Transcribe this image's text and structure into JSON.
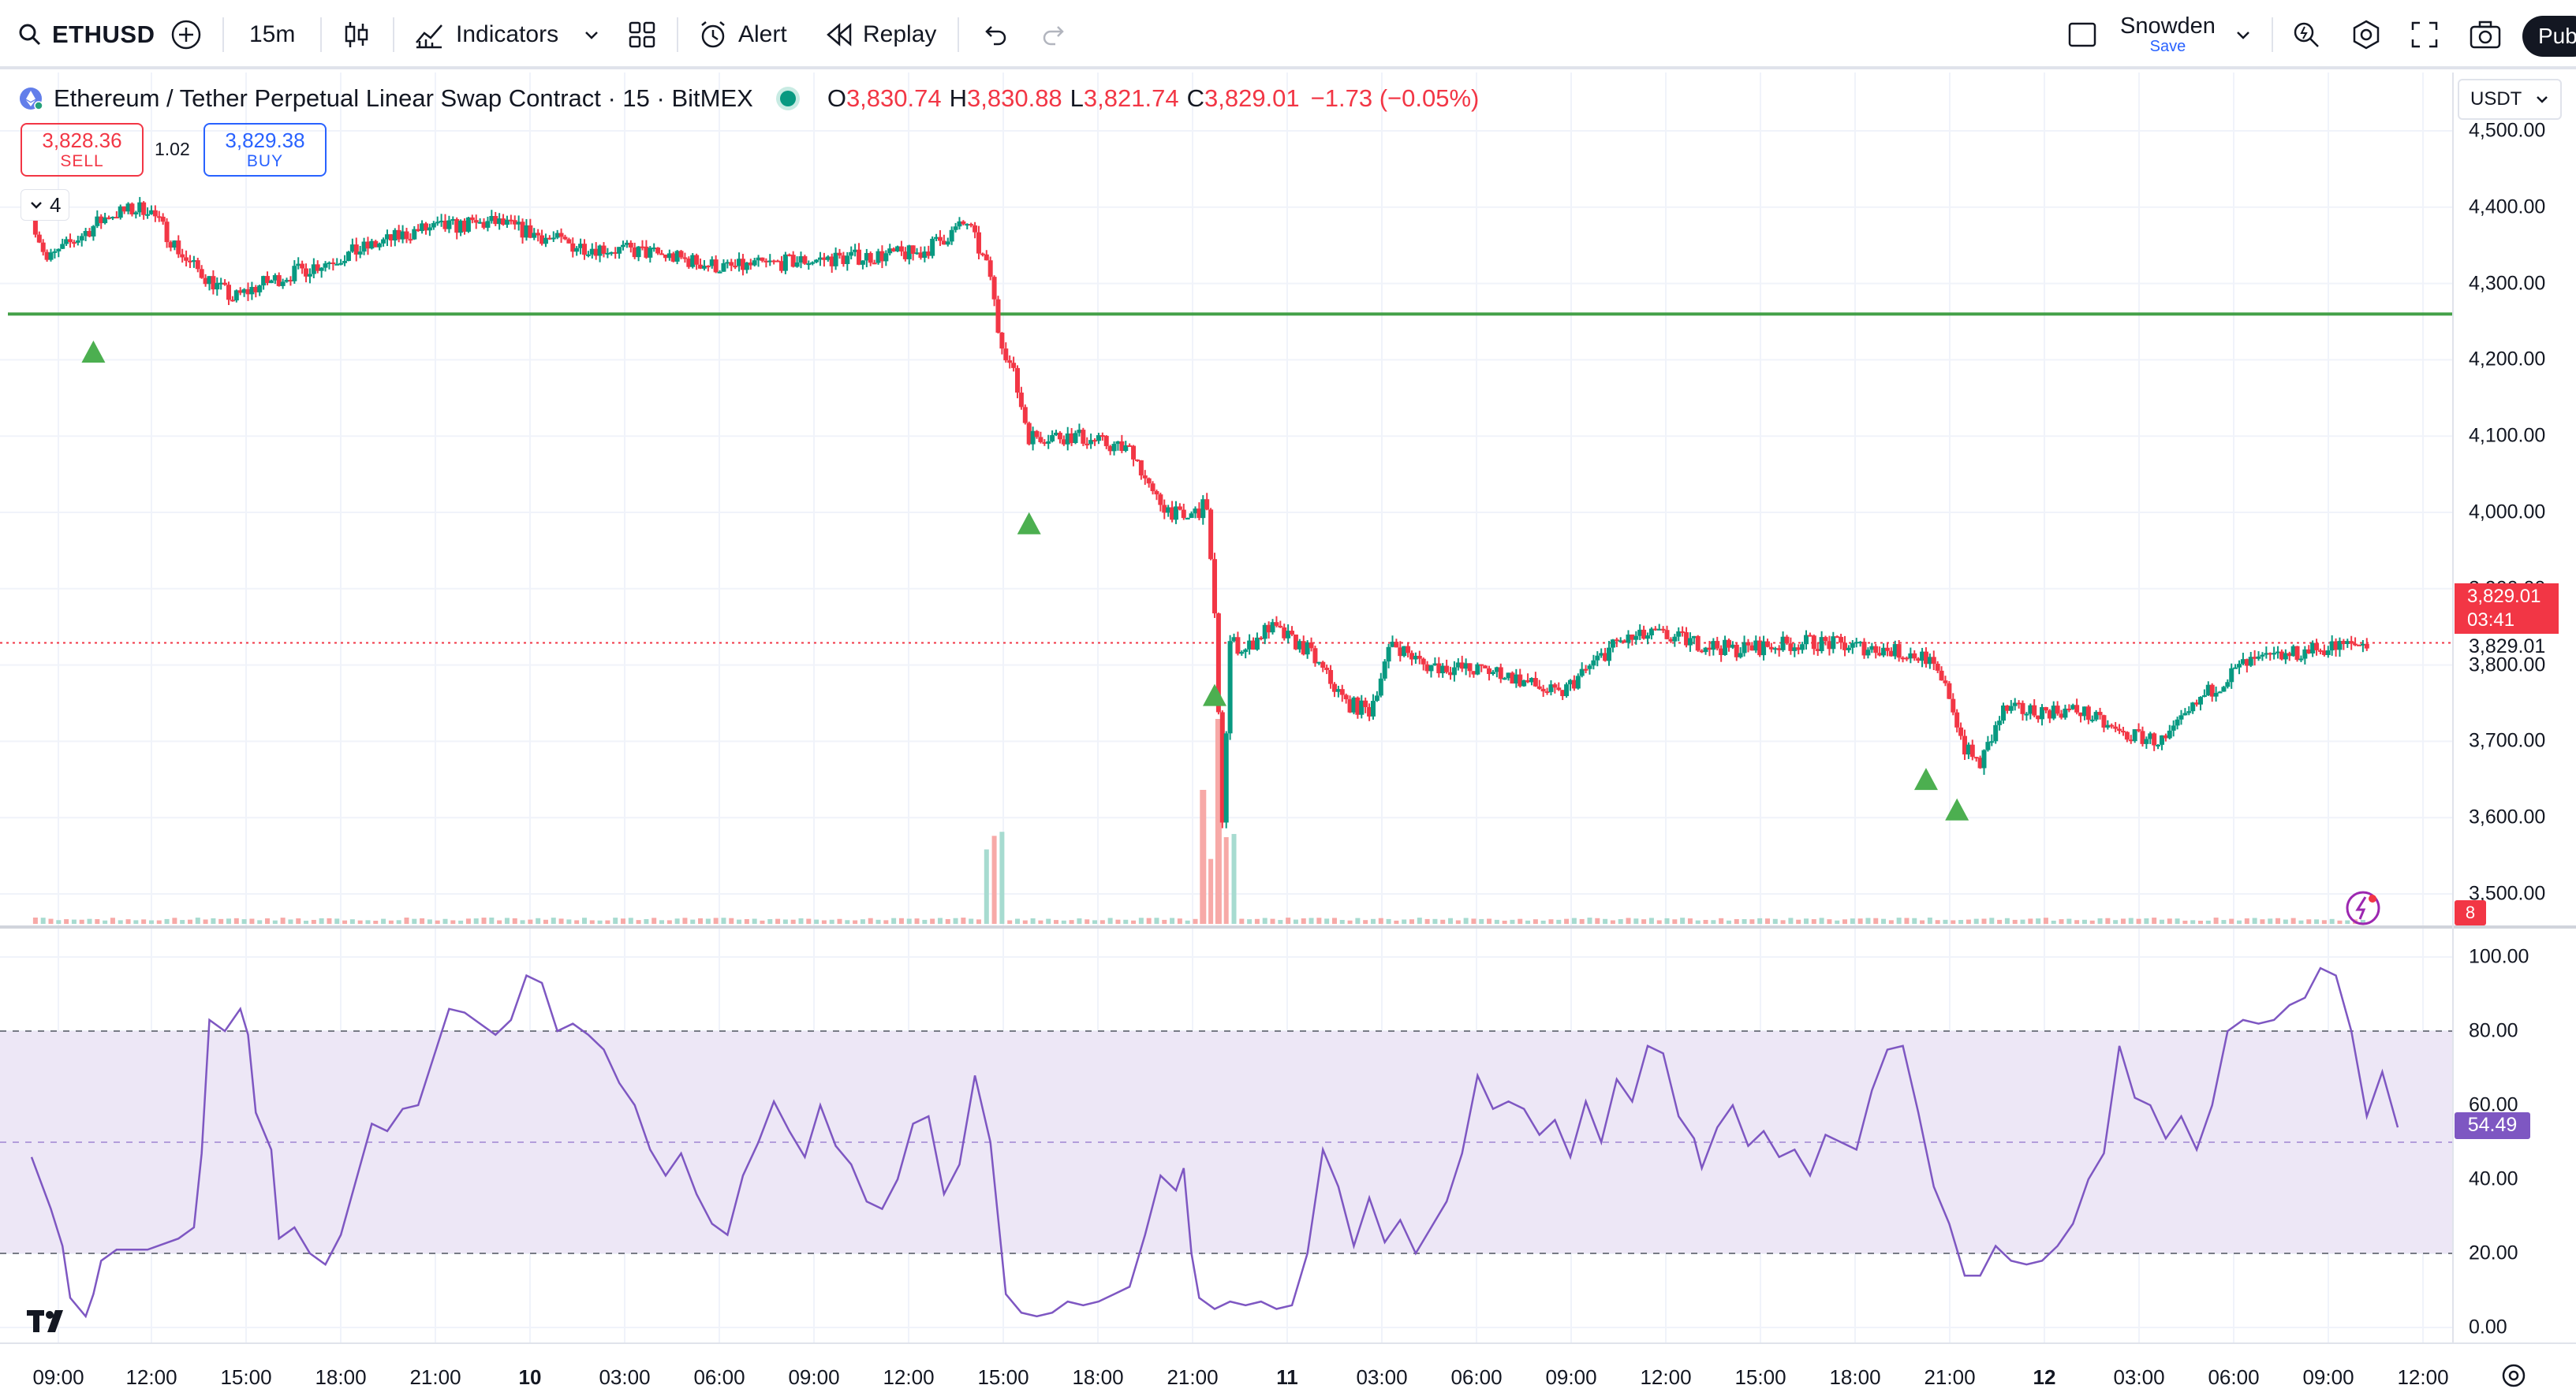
{
  "toolbar": {
    "symbol": "ETHUSD",
    "interval": "15m",
    "indicators_label": "Indicators",
    "alert_label": "Alert",
    "replay_label": "Replay",
    "user_name": "Snowden",
    "save_label": "Save",
    "publish_label": "Pub"
  },
  "legend": {
    "title": "Ethereum / Tether Perpetual Linear Swap Contract · 15 · BitMEX",
    "o_key": "O",
    "o": "3,830.74",
    "h_key": "H",
    "h": "3,830.88",
    "l_key": "L",
    "l": "3,821.74",
    "c_key": "C",
    "c": "3,829.01",
    "change": "−1.73 (−0.05%)"
  },
  "trade": {
    "sell_price": "3,828.36",
    "sell_label": "SELL",
    "spread": "1.02",
    "buy_price": "3,829.38",
    "buy_label": "BUY"
  },
  "collapse_count": "4",
  "currency": "USDT",
  "price_axis": [
    "4,500.00",
    "4,400.00",
    "4,300.00",
    "4,200.00",
    "4,100.00",
    "4,000.00",
    "3,900.00",
    "3,800.00",
    "3,700.00",
    "3,600.00",
    "3,500.00"
  ],
  "last_price": {
    "price": "3,829.01",
    "countdown": "03:41",
    "line_label": "3,829.01"
  },
  "events_count": "8",
  "rsi": {
    "value_label": "54.49",
    "value": 54.49,
    "axis": [
      "100.00",
      "80.00",
      "60.00",
      "40.00",
      "20.00",
      "0.00"
    ],
    "upper_band": 80,
    "middle": 50,
    "lower_band": 20
  },
  "time_axis": [
    "09:00",
    "12:00",
    "15:00",
    "18:00",
    "21:00",
    "10",
    "03:00",
    "06:00",
    "09:00",
    "12:00",
    "15:00",
    "18:00",
    "21:00",
    "11",
    "03:00",
    "06:00",
    "09:00",
    "12:00",
    "15:00",
    "18:00",
    "21:00",
    "12",
    "03:00",
    "06:00",
    "09:00",
    "12:00"
  ],
  "time_axis_bold": [
    5,
    13,
    21
  ],
  "colors": {
    "up": "#089981",
    "down": "#f23645",
    "hline": "#43a047",
    "rsi_line": "#7e57c2",
    "rsi_band": "#ede7f6",
    "marker": "#4caf50"
  },
  "chart_data": {
    "type": "candlestick",
    "interval": "15m",
    "y_unit": "USDT",
    "ylim": [
      3480,
      4520
    ],
    "horizontal_line": 4260,
    "close_path": [
      {
        "t": 0,
        "p": 4390
      },
      {
        "t": 4,
        "p": 4330
      },
      {
        "t": 20,
        "p": 4390
      },
      {
        "t": 30,
        "p": 4400
      },
      {
        "t": 40,
        "p": 4330
      },
      {
        "t": 52,
        "p": 4280
      },
      {
        "t": 60,
        "p": 4300
      },
      {
        "t": 80,
        "p": 4335
      },
      {
        "t": 100,
        "p": 4370
      },
      {
        "t": 120,
        "p": 4380
      },
      {
        "t": 140,
        "p": 4350
      },
      {
        "t": 160,
        "p": 4340
      },
      {
        "t": 180,
        "p": 4320
      },
      {
        "t": 200,
        "p": 4330
      },
      {
        "t": 230,
        "p": 4340
      },
      {
        "t": 242,
        "p": 4380
      },
      {
        "t": 248,
        "p": 4310
      },
      {
        "t": 250,
        "p": 4240
      },
      {
        "t": 254,
        "p": 4180
      },
      {
        "t": 258,
        "p": 4100
      },
      {
        "t": 270,
        "p": 4100
      },
      {
        "t": 285,
        "p": 4080
      },
      {
        "t": 290,
        "p": 4020
      },
      {
        "t": 298,
        "p": 3990
      },
      {
        "t": 304,
        "p": 4010
      },
      {
        "t": 306,
        "p": 3860
      },
      {
        "t": 308,
        "p": 3600
      },
      {
        "t": 310,
        "p": 3830
      },
      {
        "t": 314,
        "p": 3820
      },
      {
        "t": 320,
        "p": 3850
      },
      {
        "t": 330,
        "p": 3820
      },
      {
        "t": 340,
        "p": 3750
      },
      {
        "t": 346,
        "p": 3740
      },
      {
        "t": 352,
        "p": 3830
      },
      {
        "t": 360,
        "p": 3800
      },
      {
        "t": 380,
        "p": 3790
      },
      {
        "t": 395,
        "p": 3760
      },
      {
        "t": 410,
        "p": 3830
      },
      {
        "t": 420,
        "p": 3840
      },
      {
        "t": 440,
        "p": 3820
      },
      {
        "t": 460,
        "p": 3830
      },
      {
        "t": 480,
        "p": 3820
      },
      {
        "t": 490,
        "p": 3810
      },
      {
        "t": 496,
        "p": 3760
      },
      {
        "t": 500,
        "p": 3690
      },
      {
        "t": 504,
        "p": 3670
      },
      {
        "t": 510,
        "p": 3740
      },
      {
        "t": 530,
        "p": 3740
      },
      {
        "t": 540,
        "p": 3710
      },
      {
        "t": 552,
        "p": 3700
      },
      {
        "t": 562,
        "p": 3760
      },
      {
        "t": 572,
        "p": 3800
      },
      {
        "t": 590,
        "p": 3820
      },
      {
        "t": 604,
        "p": 3829
      }
    ],
    "buy_markers": [
      4250,
      4025,
      3800,
      3690,
      3650
    ],
    "volume_spike_times": [
      248,
      250,
      303,
      305,
      307,
      310
    ]
  },
  "rsi_chart_data": {
    "type": "line",
    "ylim": [
      0,
      100
    ],
    "points": [
      [
        0,
        46
      ],
      [
        5,
        32
      ],
      [
        8,
        22
      ],
      [
        10,
        8
      ],
      [
        14,
        3
      ],
      [
        16,
        9
      ],
      [
        18,
        18
      ],
      [
        22,
        21
      ],
      [
        30,
        21
      ],
      [
        38,
        24
      ],
      [
        42,
        27
      ],
      [
        44,
        47
      ],
      [
        46,
        83
      ],
      [
        50,
        80
      ],
      [
        54,
        86
      ],
      [
        56,
        79
      ],
      [
        58,
        58
      ],
      [
        62,
        48
      ],
      [
        64,
        24
      ],
      [
        68,
        27
      ],
      [
        72,
        20
      ],
      [
        76,
        17
      ],
      [
        80,
        25
      ],
      [
        84,
        40
      ],
      [
        88,
        55
      ],
      [
        92,
        53
      ],
      [
        96,
        59
      ],
      [
        100,
        60
      ],
      [
        104,
        73
      ],
      [
        108,
        86
      ],
      [
        112,
        85
      ],
      [
        116,
        82
      ],
      [
        120,
        79
      ],
      [
        124,
        83
      ],
      [
        128,
        95
      ],
      [
        132,
        93
      ],
      [
        136,
        80
      ],
      [
        140,
        82
      ],
      [
        144,
        79
      ],
      [
        148,
        75
      ],
      [
        152,
        66
      ],
      [
        156,
        60
      ],
      [
        160,
        48
      ],
      [
        164,
        41
      ],
      [
        168,
        47
      ],
      [
        172,
        36
      ],
      [
        176,
        28
      ],
      [
        180,
        25
      ],
      [
        184,
        41
      ],
      [
        188,
        50
      ],
      [
        192,
        61
      ],
      [
        196,
        53
      ],
      [
        200,
        46
      ],
      [
        204,
        60
      ],
      [
        208,
        49
      ],
      [
        212,
        44
      ],
      [
        216,
        34
      ],
      [
        220,
        32
      ],
      [
        224,
        40
      ],
      [
        228,
        55
      ],
      [
        232,
        57
      ],
      [
        236,
        36
      ],
      [
        240,
        44
      ],
      [
        244,
        68
      ],
      [
        248,
        50
      ],
      [
        252,
        9
      ],
      [
        256,
        4
      ],
      [
        260,
        3
      ],
      [
        264,
        4
      ],
      [
        268,
        7
      ],
      [
        272,
        6
      ],
      [
        276,
        7
      ],
      [
        280,
        9
      ],
      [
        284,
        11
      ],
      [
        288,
        25
      ],
      [
        292,
        41
      ],
      [
        296,
        37
      ],
      [
        298,
        43
      ],
      [
        300,
        20
      ],
      [
        302,
        8
      ],
      [
        306,
        5
      ],
      [
        310,
        7
      ],
      [
        314,
        6
      ],
      [
        318,
        7
      ],
      [
        322,
        5
      ],
      [
        326,
        6
      ],
      [
        330,
        20
      ],
      [
        334,
        48
      ],
      [
        338,
        38
      ],
      [
        342,
        22
      ],
      [
        346,
        35
      ],
      [
        350,
        23
      ],
      [
        354,
        29
      ],
      [
        358,
        20
      ],
      [
        362,
        27
      ],
      [
        366,
        34
      ],
      [
        370,
        47
      ],
      [
        374,
        68
      ],
      [
        378,
        59
      ],
      [
        382,
        61
      ],
      [
        386,
        59
      ],
      [
        390,
        52
      ],
      [
        394,
        56
      ],
      [
        398,
        46
      ],
      [
        402,
        61
      ],
      [
        406,
        50
      ],
      [
        410,
        67
      ],
      [
        414,
        61
      ],
      [
        418,
        76
      ],
      [
        422,
        74
      ],
      [
        426,
        57
      ],
      [
        430,
        51
      ],
      [
        432,
        43
      ],
      [
        436,
        54
      ],
      [
        440,
        60
      ],
      [
        444,
        49
      ],
      [
        448,
        53
      ],
      [
        452,
        46
      ],
      [
        456,
        48
      ],
      [
        460,
        41
      ],
      [
        464,
        52
      ],
      [
        468,
        50
      ],
      [
        472,
        48
      ],
      [
        476,
        64
      ],
      [
        480,
        75
      ],
      [
        484,
        76
      ],
      [
        488,
        58
      ],
      [
        492,
        38
      ],
      [
        496,
        28
      ],
      [
        500,
        14
      ],
      [
        504,
        14
      ],
      [
        508,
        22
      ],
      [
        512,
        18
      ],
      [
        516,
        17
      ],
      [
        520,
        18
      ],
      [
        524,
        22
      ],
      [
        528,
        28
      ],
      [
        532,
        40
      ],
      [
        536,
        47
      ],
      [
        540,
        76
      ],
      [
        544,
        62
      ],
      [
        548,
        60
      ],
      [
        552,
        51
      ],
      [
        556,
        57
      ],
      [
        560,
        48
      ],
      [
        564,
        60
      ],
      [
        568,
        80
      ],
      [
        572,
        83
      ],
      [
        576,
        82
      ],
      [
        580,
        83
      ],
      [
        584,
        87
      ],
      [
        588,
        89
      ],
      [
        592,
        97
      ],
      [
        596,
        95
      ],
      [
        600,
        80
      ],
      [
        604,
        57
      ],
      [
        608,
        69
      ],
      [
        612,
        54
      ]
    ]
  }
}
